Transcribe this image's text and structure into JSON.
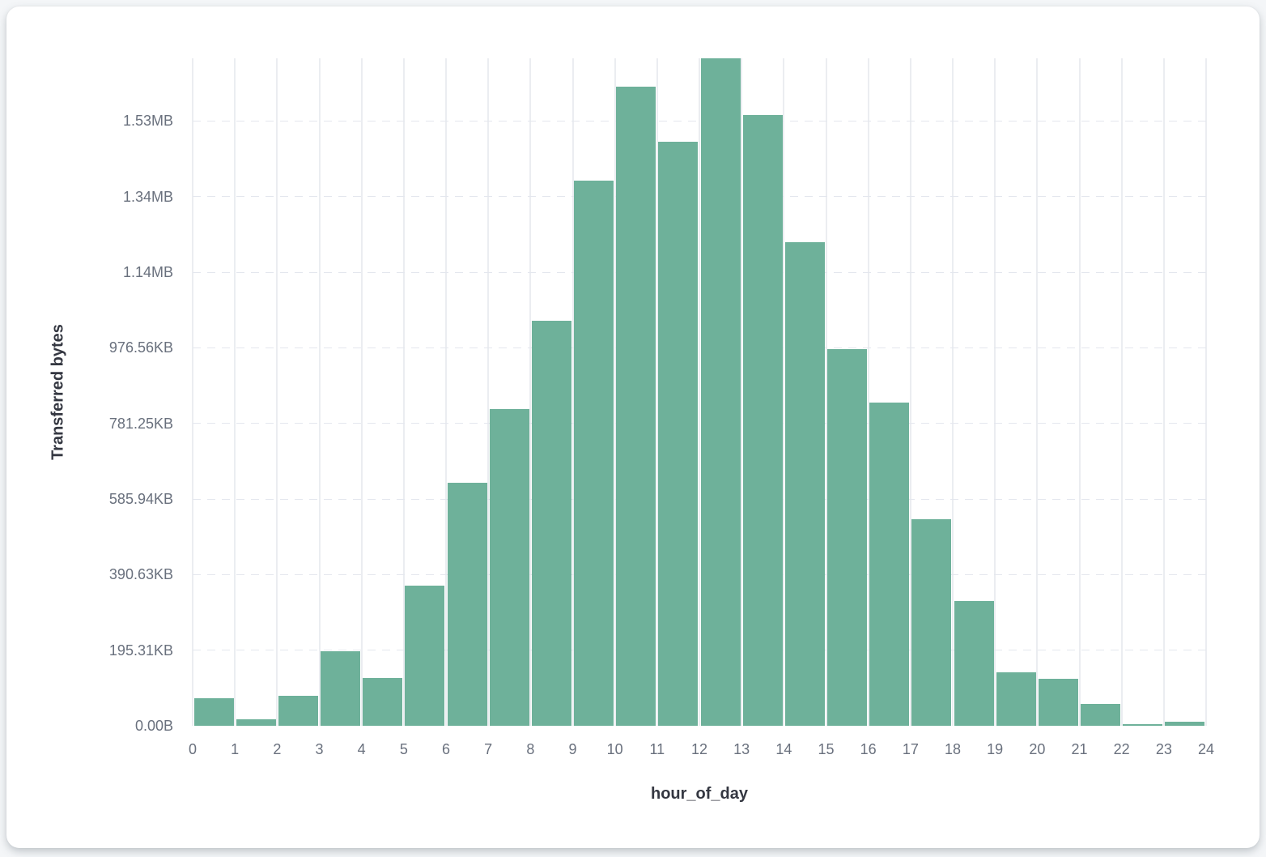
{
  "chart_data": {
    "type": "bar",
    "title": "",
    "xlabel": "hour_of_day",
    "ylabel": "Transferred bytes",
    "x": [
      0,
      1,
      2,
      3,
      4,
      5,
      6,
      7,
      8,
      9,
      10,
      11,
      12,
      13,
      14,
      15,
      16,
      17,
      18,
      19,
      20,
      21,
      22,
      23
    ],
    "values": [
      72000,
      18000,
      79000,
      197000,
      126000,
      370000,
      642000,
      839000,
      1071000,
      1443000,
      1692000,
      1546000,
      1766000,
      1616000,
      1280000,
      996000,
      856000,
      546000,
      331000,
      141000,
      125000,
      57000,
      4000,
      10000
    ],
    "values_unit": "bytes",
    "ylim": [
      0,
      1766000
    ],
    "x_ticks": [
      0,
      1,
      2,
      3,
      4,
      5,
      6,
      7,
      8,
      9,
      10,
      11,
      12,
      13,
      14,
      15,
      16,
      17,
      18,
      19,
      20,
      21,
      22,
      23,
      24
    ],
    "y_ticks": [
      {
        "value": 0,
        "label": "0.00B"
      },
      {
        "value": 200000,
        "label": "195.31KB"
      },
      {
        "value": 400000,
        "label": "390.63KB"
      },
      {
        "value": 600000,
        "label": "585.94KB"
      },
      {
        "value": 800000,
        "label": "781.25KB"
      },
      {
        "value": 1000000,
        "label": "976.56KB"
      },
      {
        "value": 1200000,
        "label": "1.14MB"
      },
      {
        "value": 1400000,
        "label": "1.34MB"
      },
      {
        "value": 1600000,
        "label": "1.53MB"
      }
    ],
    "grid": true,
    "legend_position": "none",
    "colors": {
      "bar": "#6eb19a",
      "vertical_gridline": "#ebedf1",
      "horizontal_gridline": "#e4e7ee",
      "tick_label": "#69707d",
      "axis_title": "#343741",
      "plot_background": "#ffffff",
      "page_background": "#f4f6f8"
    }
  }
}
